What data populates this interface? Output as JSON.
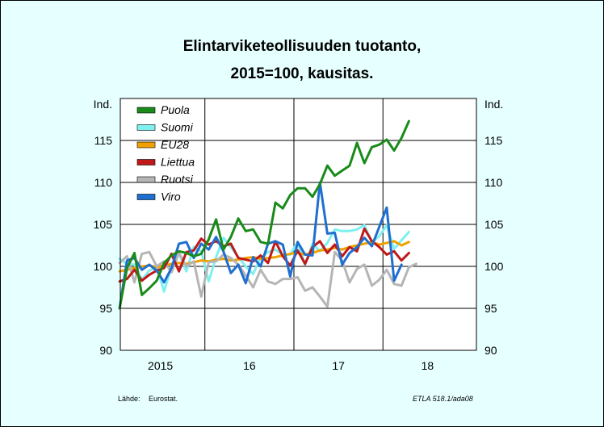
{
  "title_line1": "Elintarviketeollisuuden tuotanto,",
  "title_line2": "2015=100, kausitas.",
  "source_label": "Lähde:",
  "source_value": "Eurostat.",
  "credit": "ETLA 518.1/ada08",
  "chart_data": {
    "type": "line",
    "ylabel_left": "Ind.",
    "ylabel_right": "Ind.",
    "ylim": [
      90,
      120
    ],
    "yticks": [
      90,
      95,
      100,
      105,
      110,
      115
    ],
    "xlim": [
      2014.55,
      2018.55
    ],
    "xticks": [
      {
        "label": "2015",
        "x": 2015.0
      },
      {
        "label": "16",
        "x": 2016.0
      },
      {
        "label": "17",
        "x": 2017.0
      },
      {
        "label": "18",
        "x": 2018.0
      }
    ],
    "x_grid": [
      2015.5,
      2016.5,
      2017.5
    ],
    "grid": true,
    "legend_position": "top-left",
    "series": [
      {
        "name": "Puola",
        "color": "#1a8a1a",
        "x_start": 2014.542,
        "values": [
          95.0,
          99.8,
          101.6,
          96.6,
          97.4,
          98.3,
          100.4,
          101.3,
          101.8,
          101.6,
          101.2,
          101.5,
          103.2,
          105.6,
          102.0,
          103.5,
          105.7,
          104.2,
          104.4,
          102.9,
          102.7,
          107.6,
          106.9,
          108.5,
          109.3,
          109.3,
          108.3,
          109.8,
          112.0,
          110.8,
          111.4,
          112.0,
          114.7,
          112.3,
          114.2,
          114.5,
          115.1,
          113.8,
          115.3,
          117.3
        ]
      },
      {
        "name": "Suomi",
        "color": "#7ff0f0",
        "x_start": 2014.542,
        "values": [
          100.9,
          100.3,
          100.2,
          98.4,
          99.5,
          99.9,
          97.0,
          100.0,
          101.6,
          99.4,
          102.3,
          101.8,
          98.2,
          101.1,
          103.4,
          102.3,
          101.1,
          100.0,
          99.1,
          101.0,
          101.7,
          102.0,
          101.4,
          101.4,
          102.9,
          100.2,
          102.7,
          101.8,
          102.8,
          104.4,
          104.2,
          104.2,
          104.4,
          104.9,
          102.9,
          103.6,
          104.9,
          102.1,
          103.1,
          104.1
        ]
      },
      {
        "name": "EU28",
        "color": "#f0a000",
        "x_start": 2014.542,
        "values": [
          99.4,
          99.6,
          99.8,
          100.0,
          100.1,
          99.9,
          100.1,
          100.3,
          100.4,
          100.3,
          100.5,
          100.7,
          100.6,
          100.8,
          100.9,
          100.7,
          100.8,
          101.0,
          101.1,
          100.9,
          101.0,
          101.1,
          101.3,
          101.5,
          101.6,
          101.4,
          101.6,
          101.9,
          102.0,
          102.2,
          102.0,
          102.3,
          102.5,
          102.7,
          102.9,
          102.6,
          102.8,
          103.0,
          102.5,
          102.9
        ]
      },
      {
        "name": "Liettua",
        "color": "#c01818",
        "x_start": 2014.542,
        "values": [
          98.2,
          98.5,
          99.6,
          98.3,
          99.0,
          99.5,
          99.8,
          101.5,
          99.4,
          101.7,
          101.9,
          103.3,
          102.6,
          103.0,
          102.4,
          102.7,
          101.0,
          100.8,
          100.6,
          101.3,
          100.4,
          103.0,
          101.2,
          100.1,
          101.9,
          100.3,
          102.3,
          103.0,
          101.6,
          102.6,
          101.2,
          102.3,
          101.8,
          104.5,
          103.0,
          102.3,
          101.4,
          101.8,
          100.7,
          101.6
        ]
      },
      {
        "name": "Ruotsi",
        "color": "#b5b5b5",
        "x_start": 2014.542,
        "values": [
          100.4,
          101.2,
          98.1,
          101.5,
          101.7,
          100.0,
          100.6,
          99.3,
          101.6,
          100.0,
          100.6,
          96.4,
          100.5,
          100.6,
          101.4,
          101.0,
          100.2,
          98.9,
          97.5,
          99.6,
          98.2,
          97.9,
          98.5,
          98.5,
          98.7,
          97.1,
          97.5,
          96.4,
          95.2,
          101.7,
          100.7,
          98.1,
          99.7,
          100.2,
          97.7,
          98.4,
          99.6,
          97.9,
          97.7,
          99.9,
          100.3
        ]
      },
      {
        "name": "Viro",
        "color": "#1f6fd0",
        "x_start": 2014.542,
        "values": [
          95.0,
          100.7,
          101.0,
          99.6,
          100.2,
          99.5,
          98.1,
          99.8,
          102.7,
          102.9,
          101.0,
          102.7,
          102.0,
          103.5,
          101.8,
          99.2,
          100.2,
          98.0,
          101.1,
          100.0,
          102.7,
          103.0,
          102.6,
          98.8,
          102.9,
          101.4,
          101.3,
          110.0,
          103.9,
          104.0,
          100.2,
          101.6,
          102.3,
          103.4,
          102.4,
          104.7,
          107.0,
          98.3,
          100.2
        ]
      }
    ]
  }
}
